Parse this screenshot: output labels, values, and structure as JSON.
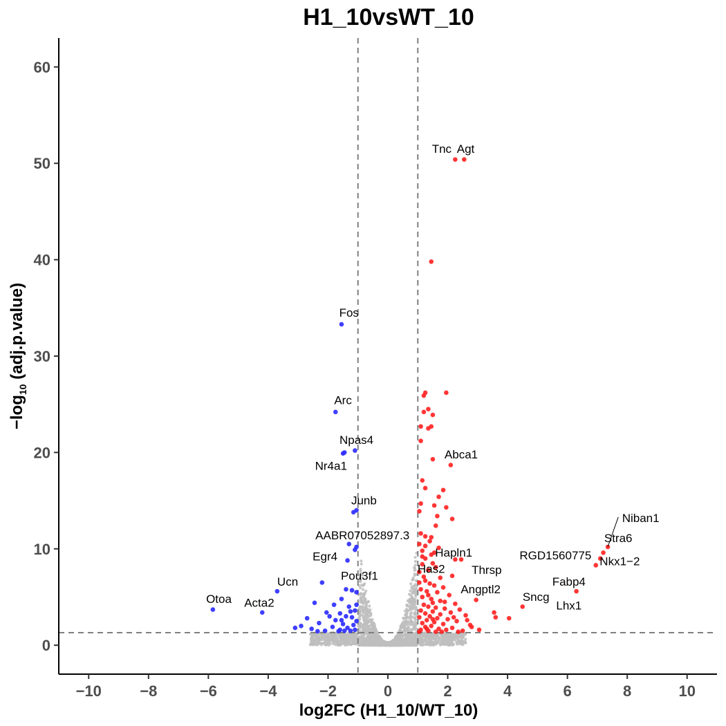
{
  "chart_data": {
    "type": "scatter",
    "title": "H1_10vsWT_10",
    "xlabel": "log2FC (H1_10/WT_10)",
    "ylabel": {
      "prefix": "−log",
      "subscript": "10",
      "suffix": " (adj.p.value)"
    },
    "xlim": [
      -11,
      11
    ],
    "ylim": [
      -3,
      63
    ],
    "xticks": [
      -10,
      -8,
      -6,
      -4,
      -2,
      0,
      2,
      4,
      6,
      8,
      10
    ],
    "xtick_labels": [
      "−10",
      "−8",
      "−6",
      "−4",
      "−2",
      "0",
      "2",
      "4",
      "6",
      "8",
      "10"
    ],
    "yticks": [
      0,
      10,
      20,
      30,
      40,
      50,
      60
    ],
    "ytick_labels": [
      "0",
      "10",
      "20",
      "30",
      "40",
      "50",
      "60"
    ],
    "grid": false,
    "thresholds": {
      "x": [
        -1,
        1
      ],
      "y": 1.3
    },
    "colors": {
      "up": "#ff2020",
      "down": "#2a2aff",
      "ns": "#bebebe",
      "threshold": "#7f7f7f"
    },
    "series": [
      {
        "key": "up",
        "color": "#ff2020",
        "points": [
          [
            2.25,
            50.4
          ],
          [
            2.55,
            50.4
          ],
          [
            1.45,
            39.8
          ],
          [
            1.25,
            26.2
          ],
          [
            1.95,
            26.2
          ],
          [
            1.2,
            25.9
          ],
          [
            1.35,
            24.5
          ],
          [
            1.2,
            24.2
          ],
          [
            1.5,
            23.9
          ],
          [
            1.1,
            22.7
          ],
          [
            1.45,
            22.7
          ],
          [
            1.35,
            22.5
          ],
          [
            1.1,
            21.2
          ],
          [
            1.5,
            19.3
          ],
          [
            2.1,
            18.7
          ],
          [
            1.15,
            17.1
          ],
          [
            1.25,
            16.3
          ],
          [
            1.85,
            16.1
          ],
          [
            1.7,
            15.4
          ],
          [
            1.1,
            14.7
          ],
          [
            1.55,
            14.5
          ],
          [
            1.95,
            14.3
          ],
          [
            1.05,
            13.9
          ],
          [
            1.65,
            13.4
          ],
          [
            2.15,
            13.1
          ],
          [
            1.6,
            12.4
          ],
          [
            1.1,
            11.6
          ],
          [
            1.25,
            11.3
          ],
          [
            1.45,
            11.2
          ],
          [
            1.4,
            10.8
          ],
          [
            1.05,
            10.5
          ],
          [
            1.25,
            10.3
          ],
          [
            1.7,
            10.1
          ],
          [
            1.15,
            9.8
          ],
          [
            1.55,
            9.6
          ],
          [
            1.45,
            9.4
          ],
          [
            1.15,
            9.2
          ],
          [
            1.25,
            9.0
          ],
          [
            2.25,
            8.9
          ],
          [
            2.45,
            8.9
          ],
          [
            1.5,
            8.5
          ],
          [
            1.15,
            8.4
          ],
          [
            1.6,
            8.1
          ],
          [
            1.35,
            7.8
          ],
          [
            1.05,
            7.6
          ],
          [
            2.15,
            7.2
          ],
          [
            1.75,
            7.0
          ],
          [
            1.25,
            6.7
          ],
          [
            1.4,
            6.4
          ],
          [
            1.55,
            6.2
          ],
          [
            1.85,
            6.0
          ],
          [
            1.1,
            5.8
          ],
          [
            1.3,
            5.6
          ],
          [
            1.65,
            5.5
          ],
          [
            2.05,
            5.2
          ],
          [
            1.15,
            5.0
          ],
          [
            1.45,
            4.8
          ],
          [
            2.95,
            4.7
          ],
          [
            1.75,
            4.6
          ],
          [
            2.25,
            4.3
          ],
          [
            1.2,
            4.2
          ],
          [
            1.35,
            4.0
          ],
          [
            1.6,
            3.9
          ],
          [
            1.9,
            3.8
          ],
          [
            2.4,
            3.7
          ],
          [
            1.1,
            3.6
          ],
          [
            1.5,
            3.5
          ],
          [
            2.1,
            3.4
          ],
          [
            1.25,
            3.3
          ],
          [
            1.75,
            3.2
          ],
          [
            2.6,
            3.1
          ],
          [
            1.4,
            3.0
          ],
          [
            1.05,
            2.9
          ],
          [
            1.65,
            2.8
          ],
          [
            2.0,
            2.7
          ],
          [
            1.3,
            2.6
          ],
          [
            2.3,
            2.5
          ],
          [
            1.55,
            2.4
          ],
          [
            1.15,
            2.3
          ],
          [
            1.85,
            2.2
          ],
          [
            2.75,
            2.1
          ],
          [
            1.45,
            2.0
          ],
          [
            1.25,
            1.9
          ],
          [
            2.15,
            1.8
          ],
          [
            1.7,
            1.7
          ],
          [
            1.1,
            1.6
          ],
          [
            1.95,
            1.6
          ],
          [
            2.5,
            1.5
          ],
          [
            1.35,
            1.5
          ],
          [
            1.6,
            1.4
          ],
          [
            1.05,
            1.4
          ],
          [
            2.35,
            1.4
          ],
          [
            1.8,
            1.4
          ],
          [
            3.55,
            3.4
          ],
          [
            3.6,
            2.9
          ],
          [
            4.05,
            2.8
          ],
          [
            4.5,
            4.0
          ],
          [
            6.3,
            5.6
          ],
          [
            6.95,
            8.3
          ],
          [
            7.1,
            9.0
          ],
          [
            7.2,
            9.6
          ],
          [
            7.35,
            10.2
          ],
          [
            2.8,
            1.9
          ],
          [
            3.05,
            1.6
          ],
          [
            2.65,
            2.6
          ],
          [
            1.2,
            7.1
          ],
          [
            1.05,
            6.5
          ],
          [
            1.35,
            5.2
          ],
          [
            1.5,
            4.4
          ],
          [
            1.9,
            4.5
          ],
          [
            2.2,
            2.9
          ],
          [
            1.3,
            1.7
          ],
          [
            1.5,
            2.7
          ]
        ]
      },
      {
        "key": "down",
        "color": "#2a2aff",
        "points": [
          [
            -1.55,
            33.3
          ],
          [
            -1.75,
            24.2
          ],
          [
            -1.5,
            19.9
          ],
          [
            -1.45,
            20.0
          ],
          [
            -1.1,
            20.2
          ],
          [
            -1.15,
            13.8
          ],
          [
            -1.05,
            14.0
          ],
          [
            -1.3,
            10.5
          ],
          [
            -1.05,
            10.2
          ],
          [
            -1.1,
            9.9
          ],
          [
            -1.35,
            8.8
          ],
          [
            -2.2,
            6.5
          ],
          [
            -3.7,
            5.6
          ],
          [
            -4.2,
            3.4
          ],
          [
            -5.85,
            3.7
          ],
          [
            -1.2,
            5.7
          ],
          [
            -1.4,
            5.8
          ],
          [
            -1.05,
            5.5
          ],
          [
            -1.55,
            4.8
          ],
          [
            -2.45,
            4.4
          ],
          [
            -1.8,
            4.2
          ],
          [
            -1.3,
            4.0
          ],
          [
            -1.1,
            3.6
          ],
          [
            -2.05,
            3.4
          ],
          [
            -1.6,
            3.3
          ],
          [
            -1.4,
            3.0
          ],
          [
            -2.7,
            2.8
          ],
          [
            -1.2,
            2.9
          ],
          [
            -1.75,
            2.6
          ],
          [
            -1.05,
            2.5
          ],
          [
            -2.3,
            2.3
          ],
          [
            -1.5,
            2.2
          ],
          [
            -1.15,
            2.1
          ],
          [
            -2.9,
            2.0
          ],
          [
            -1.85,
            1.9
          ],
          [
            -1.35,
            1.8
          ],
          [
            -3.1,
            1.8
          ],
          [
            -2.55,
            1.7
          ],
          [
            -1.6,
            1.6
          ],
          [
            -1.1,
            1.6
          ],
          [
            -2.1,
            1.5
          ],
          [
            -1.45,
            1.5
          ],
          [
            -2.35,
            1.45
          ],
          [
            -1.25,
            1.5
          ],
          [
            -1.65,
            1.45
          ],
          [
            -1.95,
            3.0
          ],
          [
            -1.55,
            2.6
          ],
          [
            -1.25,
            3.5
          ],
          [
            -1.05,
            4.2
          ]
        ]
      }
    ],
    "labels": [
      {
        "text": "Tnc",
        "x": 1.8,
        "y": 51.1
      },
      {
        "text": "Agt",
        "x": 2.6,
        "y": 51.1
      },
      {
        "text": "Fos",
        "x": -1.3,
        "y": 34.1
      },
      {
        "text": "Arc",
        "x": -1.5,
        "y": 25.0
      },
      {
        "text": "Npas4",
        "x": -1.05,
        "y": 20.9
      },
      {
        "text": "Nr4a1",
        "x": -1.9,
        "y": 18.2
      },
      {
        "text": "Abca1",
        "x": 2.45,
        "y": 19.4
      },
      {
        "text": "Junb",
        "x": -0.8,
        "y": 14.6
      },
      {
        "text": "Niban1",
        "x": 8.45,
        "y": 12.8
      },
      {
        "text": "AABR07052897.3",
        "x": -0.85,
        "y": 11.0
      },
      {
        "text": "Stra6",
        "x": 7.7,
        "y": 10.7
      },
      {
        "text": "Hapln1",
        "x": 2.2,
        "y": 9.2
      },
      {
        "text": "RGD1560775",
        "x": 5.6,
        "y": 8.9
      },
      {
        "text": "Egr4",
        "x": -2.1,
        "y": 8.8
      },
      {
        "text": "Nkx1−2",
        "x": 7.75,
        "y": 8.3
      },
      {
        "text": "Has2",
        "x": 1.45,
        "y": 7.5
      },
      {
        "text": "Thrsp",
        "x": 3.3,
        "y": 7.4
      },
      {
        "text": "Pou3f1",
        "x": -0.95,
        "y": 6.8
      },
      {
        "text": "Ucn",
        "x": -3.35,
        "y": 6.2
      },
      {
        "text": "Fabp4",
        "x": 6.05,
        "y": 6.2
      },
      {
        "text": "Angptl2",
        "x": 3.1,
        "y": 5.4
      },
      {
        "text": "Sncg",
        "x": 4.95,
        "y": 4.6
      },
      {
        "text": "Otoa",
        "x": -5.65,
        "y": 4.4
      },
      {
        "text": "Acta2",
        "x": -4.3,
        "y": 4.0
      },
      {
        "text": "Lhx1",
        "x": 6.05,
        "y": 3.7
      }
    ],
    "label_connectors": [
      {
        "from": [
          7.35,
          10.2
        ],
        "to": [
          7.7,
          13.3
        ]
      }
    ]
  }
}
